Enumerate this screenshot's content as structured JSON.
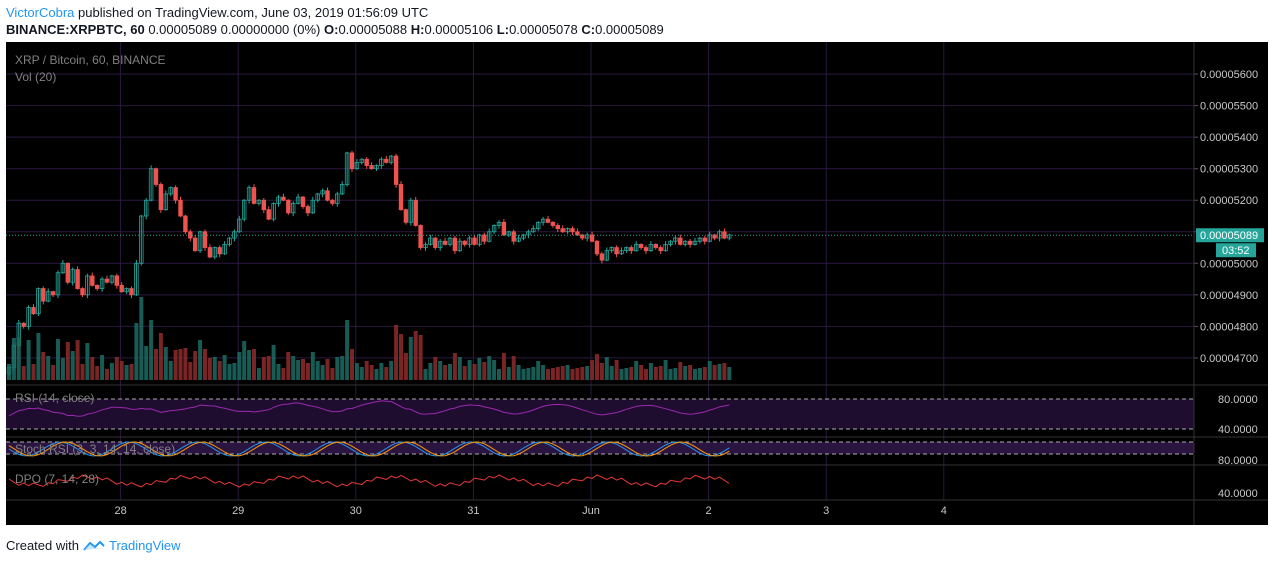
{
  "header": {
    "author": "VictorCobra",
    "published_text": "published on TradingView.com, June 03, 2019 01:56:09 UTC",
    "symbol": "BINANCE:XRPBTC, 60",
    "change": "0.00005089 0.00000000 (0%)",
    "o_label": "O:",
    "o_value": "0.00005088",
    "h_label": "H:",
    "h_value": "0.00005106",
    "l_label": "L:",
    "l_value": "0.00005078",
    "c_label": "C:",
    "c_value": "0.00005089"
  },
  "footer": {
    "created_with": "Created with",
    "brand": "TradingView"
  },
  "colors": {
    "up": "#26a69a",
    "down": "#ef5350",
    "vol_up": "#1b6b63",
    "vol_down": "#8e2b2b",
    "grid": "#2a1840",
    "axis_text": "#c8c8c8",
    "rsi": "#9c27b0",
    "stoch_k": "#2196f3",
    "stoch_d": "#ff9800",
    "dpo": "#e53935",
    "price_badge": "#26a69a"
  },
  "chart_data": {
    "type": "candlestick",
    "title": "XRP / Bitcoin, 60, BINANCE",
    "volume_label": "Vol (20)",
    "ylim": [
      4.63e-05,
      5.67e-05
    ],
    "y_ticks": [
      "0.00005600",
      "0.00005500",
      "0.00005400",
      "0.00005300",
      "0.00005200",
      "0.00005100",
      "0.00005000",
      "0.00004900",
      "0.00004800",
      "0.00004700"
    ],
    "y_tick_values": [
      5.6e-05,
      5.5e-05,
      5.4e-05,
      5.3e-05,
      5.2e-05,
      5.1e-05,
      5e-05,
      4.9e-05,
      4.8e-05,
      4.7e-05
    ],
    "last_price": "0.00005089",
    "last_price_value": 5.089e-05,
    "countdown": "03:52",
    "x_labels": [
      "28",
      "29",
      "30",
      "31",
      "Jun",
      "2",
      "3",
      "4"
    ],
    "x_label_index": [
      24,
      48,
      72,
      96,
      120,
      144,
      168,
      192
    ],
    "closes": [
      4.67,
      4.74,
      4.81,
      4.8,
      4.86,
      4.84,
      4.92,
      4.88,
      4.91,
      4.9,
      4.97,
      5.0,
      4.94,
      4.98,
      4.92,
      4.9,
      4.96,
      4.93,
      4.92,
      4.95,
      4.94,
      4.96,
      4.93,
      4.91,
      4.92,
      4.9,
      5.0,
      5.15,
      5.2,
      5.3,
      5.25,
      5.17,
      5.22,
      5.24,
      5.2,
      5.15,
      5.1,
      5.08,
      5.04,
      5.1,
      5.05,
      5.02,
      5.05,
      5.03,
      5.06,
      5.08,
      5.1,
      5.14,
      5.2,
      5.24,
      5.19,
      5.2,
      5.17,
      5.14,
      5.19,
      5.21,
      5.2,
      5.16,
      5.19,
      5.21,
      5.18,
      5.16,
      5.2,
      5.22,
      5.23,
      5.2,
      5.19,
      5.22,
      5.25,
      5.35,
      5.3,
      5.32,
      5.33,
      5.31,
      5.3,
      5.31,
      5.33,
      5.32,
      5.34,
      5.25,
      5.17,
      5.13,
      5.2,
      5.12,
      5.05,
      5.06,
      5.08,
      5.05,
      5.07,
      5.06,
      5.08,
      5.04,
      5.07,
      5.06,
      5.08,
      5.06,
      5.09,
      5.07,
      5.1,
      5.12,
      5.13,
      5.09,
      5.1,
      5.07,
      5.08,
      5.09,
      5.1,
      5.11,
      5.13,
      5.14,
      5.13,
      5.12,
      5.11,
      5.1,
      5.11,
      5.1,
      5.09,
      5.08,
      5.09,
      5.07,
      5.03,
      5.01,
      5.04,
      5.05,
      5.03,
      5.04,
      5.05,
      5.04,
      5.06,
      5.05,
      5.04,
      5.06,
      5.05,
      5.04,
      5.06,
      5.07,
      5.08,
      5.06,
      5.07,
      5.06,
      5.07,
      5.08,
      5.07,
      5.09,
      5.08,
      5.1,
      5.08,
      5.09
    ],
    "rsi": {
      "label": "RSI (14, close)",
      "ticks": [
        "80.0000",
        "40.0000"
      ]
    },
    "stoch_rsi": {
      "label": "Stoch RSI (3, 3, 14, 14, close)",
      "ticks": [
        "80.0000"
      ]
    },
    "dpo": {
      "label": "DPO (7, 14, 28)",
      "ticks": [
        "40.0000"
      ]
    }
  }
}
